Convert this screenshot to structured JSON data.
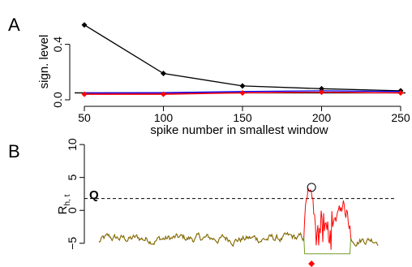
{
  "chart_data": [
    {
      "type": "line",
      "panel_label": "A",
      "xlabel": "spike number in smallest window",
      "ylabel": "sign. level",
      "x": [
        50,
        100,
        150,
        200,
        250
      ],
      "x_ticks": [
        "50",
        "100",
        "150",
        "200",
        "250"
      ],
      "xlim": [
        50,
        250
      ],
      "ylim": [
        0,
        0.55
      ],
      "y_ticks": [
        {
          "value": 0.0,
          "label": "0.0"
        },
        {
          "value": 0.4,
          "label": "0.4"
        }
      ],
      "reference_line": 0.05,
      "series": [
        {
          "color": "#000000",
          "marker": "diamond",
          "values": [
            0.54,
            0.19,
            0.1,
            0.08,
            0.065
          ]
        },
        {
          "color": "#0000ff",
          "marker": "none",
          "values": [
            0.05,
            0.052,
            0.06,
            0.065,
            0.06
          ]
        },
        {
          "color": "#7f007f",
          "marker": "none",
          "values": [
            0.045,
            0.046,
            0.052,
            0.055,
            0.05
          ]
        },
        {
          "color": "#ff0000",
          "marker": "diamond",
          "values": [
            0.04,
            0.04,
            0.05,
            0.055,
            0.05
          ]
        }
      ]
    },
    {
      "type": "line",
      "panel_label": "B",
      "ylabel": "R",
      "ylabel_sub": "h, t",
      "ylim": [
        -7,
        11
      ],
      "y_ticks": [
        {
          "value": -5,
          "label": "−5"
        },
        {
          "value": 0,
          "label": "0"
        },
        {
          "value": 5,
          "label": "5"
        },
        {
          "value": 10,
          "label": "10"
        }
      ],
      "threshold": {
        "label": "Q",
        "value": 1.8
      },
      "series_colors": {
        "primary": "#ff0000",
        "secondary": "#5a8a00"
      },
      "peak": {
        "x": 0.762,
        "y": 3.5
      },
      "marker_color": "#ff0000"
    }
  ]
}
